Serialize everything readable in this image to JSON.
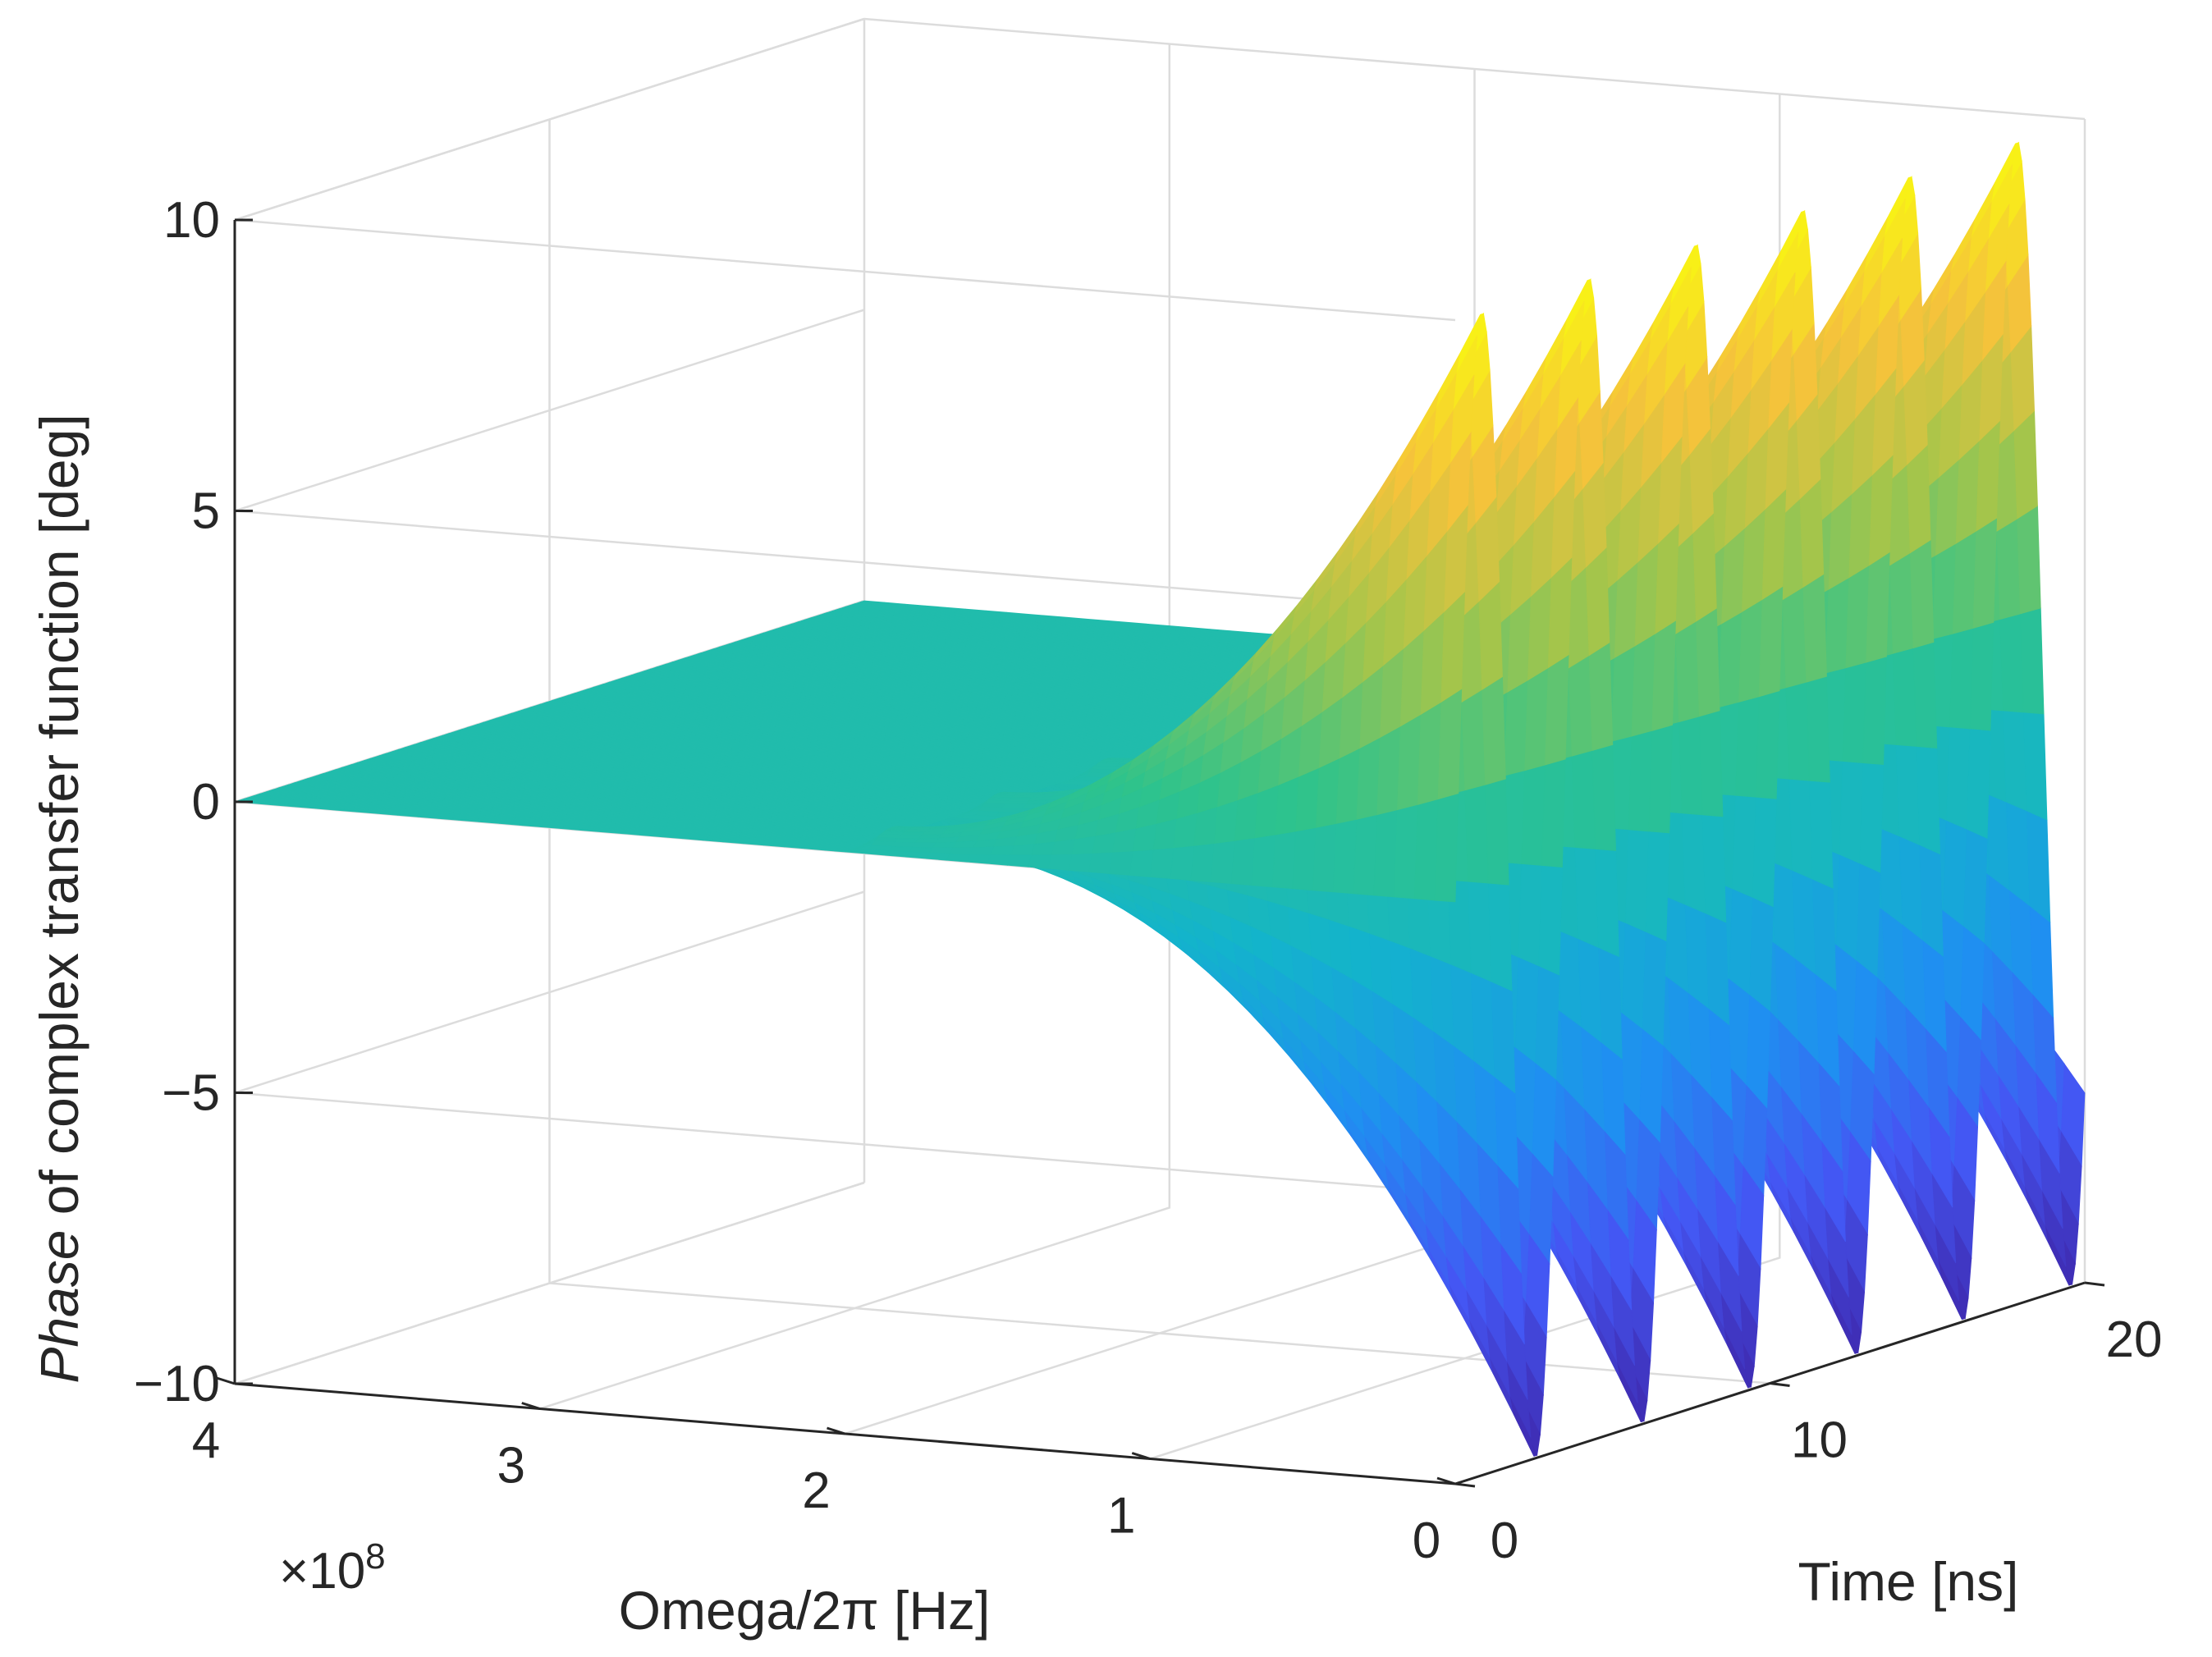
{
  "chart_data": {
    "type": "surface",
    "title": "",
    "zlabel_italic": "Phase",
    "zlabel_rest": " of complex transfer function [deg]",
    "xlabel": "Omega/2π [Hz]",
    "ylabel": "Time [ns]",
    "x_exponent_base": "×10",
    "x_exponent_power": "8",
    "xlim": [
      0,
      400000000
    ],
    "ylim": [
      0,
      20
    ],
    "zlim": [
      -10,
      10
    ],
    "x_ticks": [
      {
        "value": 0,
        "label": "0"
      },
      {
        "value": 100000000,
        "label": "1"
      },
      {
        "value": 200000000,
        "label": "2"
      },
      {
        "value": 300000000,
        "label": "3"
      },
      {
        "value": 400000000,
        "label": "4"
      }
    ],
    "y_ticks": [
      {
        "value": 0,
        "label": "0"
      },
      {
        "value": 10,
        "label": "10"
      },
      {
        "value": 20,
        "label": "20"
      }
    ],
    "z_ticks": [
      {
        "value": -10,
        "label": "−10"
      },
      {
        "value": -5,
        "label": "−5"
      },
      {
        "value": 0,
        "label": "0"
      },
      {
        "value": 5,
        "label": "5"
      },
      {
        "value": 10,
        "label": "10"
      }
    ],
    "oscillation_period_ns": 3.4,
    "amplitude_max_deg": 10,
    "amplitude_min_deg": 0.3,
    "resonance_onset_hz": 200000000,
    "colormap": [
      "#3e26a8",
      "#4456f3",
      "#1f8ff1",
      "#13b4cb",
      "#2ec38c",
      "#a4c54b",
      "#f5c33b",
      "#f9fb0e"
    ]
  }
}
